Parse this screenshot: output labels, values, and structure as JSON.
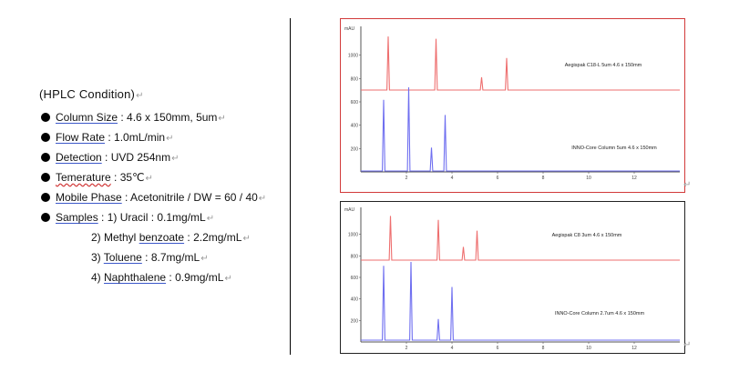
{
  "hplc": {
    "title": "(HPLC Condition)",
    "conditions": [
      {
        "key": "Column Size",
        "value": " : 4.6 x 150mm, 5um",
        "style": "blue"
      },
      {
        "key": "Flow Rate",
        "value": " : 1.0mL/min",
        "style": "blue"
      },
      {
        "key": "Detection",
        "value": " : UVD 254nm",
        "style": "blue"
      },
      {
        "key": "Temerature",
        "value": " : 35℃",
        "style": "red"
      },
      {
        "key": "Mobile Phase",
        "value": " : Acetonitrile / DW = 60 / 40",
        "style": "blue"
      },
      {
        "key": "Samples",
        "value": " : 1) Uracil : 0.1mg/mL",
        "style": "blue"
      }
    ],
    "samples_more": [
      {
        "prefix": "2) Methyl ",
        "key": "benzoate",
        "value": " : 2.2mg/mL"
      },
      {
        "prefix": "3) ",
        "key": "Toluene",
        "value": " : 8.7mg/mL"
      },
      {
        "prefix": "4) ",
        "key": "Naphthalene",
        "value": " : 0.9mg/mL"
      }
    ],
    "para_mark": "↵"
  },
  "chart_data": [
    {
      "type": "line",
      "y_axis_unit": "mAU",
      "ylim": [
        0,
        1200
      ],
      "xlim": [
        0,
        14
      ],
      "yticks": [
        "200",
        "400",
        "600",
        "800",
        "1000"
      ],
      "xticks": [
        "2",
        "4",
        "6",
        "8",
        "10",
        "12"
      ],
      "colors": {
        "red": "#ee6f6f",
        "blue": "#6f6ff0"
      },
      "series": [
        {
          "name": "Aegispak C18-L 5um 4.6 x 150mm",
          "color": "red",
          "peaks": [
            {
              "x": 1.2,
              "h": 0.92
            },
            {
              "x": 3.3,
              "h": 0.88
            },
            {
              "x": 5.3,
              "h": 0.22
            },
            {
              "x": 6.4,
              "h": 0.55
            }
          ]
        },
        {
          "name": "INNO-Core Column 5um 4.6 x 150mm",
          "color": "blue",
          "peaks": [
            {
              "x": 1.0,
              "h": 0.85
            },
            {
              "x": 2.1,
              "h": 1.0
            },
            {
              "x": 3.1,
              "h": 0.28
            },
            {
              "x": 3.7,
              "h": 0.67
            }
          ]
        }
      ]
    },
    {
      "type": "line",
      "y_axis_unit": "mAU",
      "ylim": [
        0,
        1200
      ],
      "xlim": [
        0,
        14
      ],
      "yticks": [
        "200",
        "400",
        "600",
        "800",
        "1000"
      ],
      "xticks": [
        "2",
        "4",
        "6",
        "8",
        "10",
        "12"
      ],
      "colors": {
        "red": "#ee6f6f",
        "blue": "#6f6ff0"
      },
      "series": [
        {
          "name": "Aegispak C8 3um 4.6 x 150mm",
          "color": "red",
          "peaks": [
            {
              "x": 1.3,
              "h": 0.9
            },
            {
              "x": 3.4,
              "h": 0.82
            },
            {
              "x": 4.5,
              "h": 0.27
            },
            {
              "x": 5.1,
              "h": 0.6
            }
          ]
        },
        {
          "name": "INNO-Core Column 2.7um 4.6 x 150mm",
          "color": "blue",
          "peaks": [
            {
              "x": 1.0,
              "h": 0.95
            },
            {
              "x": 2.2,
              "h": 1.0
            },
            {
              "x": 3.4,
              "h": 0.27
            },
            {
              "x": 4.0,
              "h": 0.68
            }
          ]
        }
      ]
    }
  ]
}
